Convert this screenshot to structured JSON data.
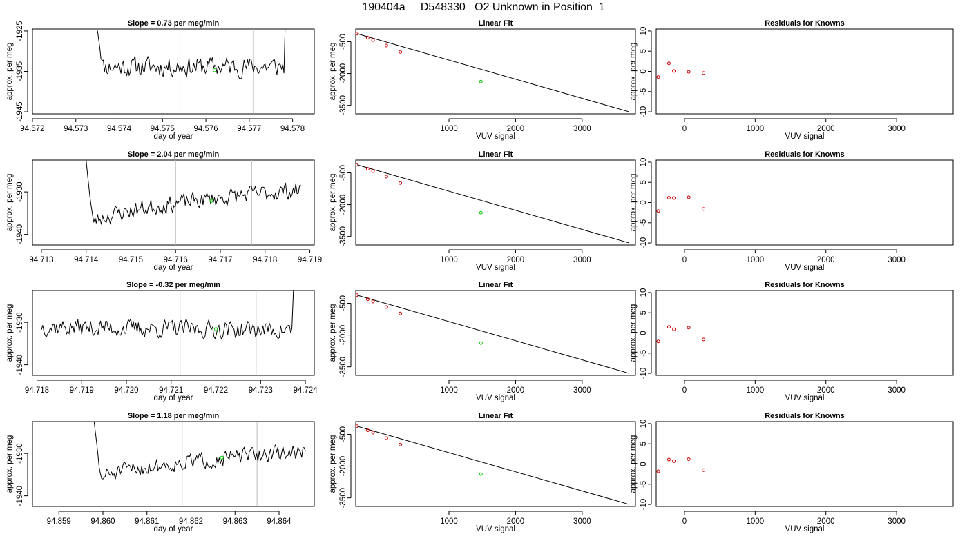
{
  "page": {
    "title": "190404a     D548330   O2 Unknown in Position  1"
  },
  "chart_data": [
    {
      "type": "line",
      "panel": "timeseries",
      "title_prefix": "Slope = ",
      "slope": "0.73",
      "title_suffix": " per meg/min",
      "xlabel": "day of year",
      "ylabel": "approx. per meg",
      "xlim": [
        94.572,
        94.5785
      ],
      "ylim": [
        -1945.5,
        -1924.5
      ],
      "xticks": [
        "94.572",
        "94.573",
        "94.574",
        "94.575",
        "94.576",
        "94.577",
        "94.578"
      ],
      "yticks": [
        "-1925",
        "-1935",
        "-1945"
      ],
      "vlines": [
        94.5754,
        94.5771
      ],
      "series": [
        {
          "x_start": 94.5735,
          "x_end": 94.5778,
          "n": 160,
          "base": -1933.8,
          "trend": 0.0,
          "noise": 2.2,
          "start_spike": -1925.0,
          "end_spike": -1924.5,
          "seed": 11
        }
      ],
      "green_point": [
        94.5762,
        -1934.7
      ],
      "line_color": "#000000",
      "point_color": "#00cc00",
      "ref_line_color": "#bbbbbb"
    },
    {
      "type": "scatter",
      "panel": "linear_fit",
      "title": "Linear Fit",
      "xlabel": "VUV signal",
      "ylabel": "approx. per meg",
      "xlim": [
        -400,
        3800
      ],
      "ylim": [
        -3900,
        100
      ],
      "xticks": [
        "1000",
        "2000",
        "3000"
      ],
      "yticks": [
        "-500",
        "-2000",
        "-3500"
      ],
      "known_points": [
        [
          -380,
          -120
        ],
        [
          -220,
          -310
        ],
        [
          -140,
          -420
        ],
        [
          60,
          -680
        ],
        [
          270,
          -980
        ]
      ],
      "unknown_point": [
        1480,
        -2380
      ],
      "fit_line": [
        [
          -380,
          -120
        ],
        [
          3700,
          -3800
        ]
      ],
      "point_color": "#cc0000",
      "unknown_color": "#00cc00"
    },
    {
      "type": "scatter",
      "panel": "residuals",
      "title": "Residuals for Knowns",
      "xlabel": "VUV signal",
      "ylabel": "approx. per meg",
      "xlim": [
        -400,
        3800
      ],
      "ylim": [
        -10.5,
        10.5
      ],
      "xticks": [
        "0",
        "1000",
        "2000",
        "3000"
      ],
      "yticks": [
        "10",
        "5",
        "0",
        "-5",
        "-10"
      ],
      "points": [
        [
          -370,
          -1.4
        ],
        [
          -220,
          2.0
        ],
        [
          -150,
          0.1
        ],
        [
          60,
          -0.1
        ],
        [
          270,
          -0.4
        ]
      ],
      "point_color": "#cc0000"
    },
    {
      "type": "line",
      "panel": "timeseries",
      "title_prefix": "Slope = ",
      "slope": "2.04",
      "title_suffix": " per meg/min",
      "xlabel": "day of year",
      "ylabel": "approx. per meg",
      "xlim": [
        94.7128,
        94.7191
      ],
      "ylim": [
        -1942.5,
        -1922.5
      ],
      "xticks": [
        "94.713",
        "94.714",
        "94.715",
        "94.716",
        "94.717",
        "94.718",
        "94.719"
      ],
      "yticks": [
        "-1930",
        "-1940"
      ],
      "vlines": [
        94.716,
        94.7177
      ],
      "series": [
        {
          "x_start": 94.714,
          "x_end": 94.7188,
          "n": 170,
          "base": -1938.5,
          "trend": 9.0,
          "noise": 1.8,
          "start_spike": -1922.5,
          "end_spike": null,
          "seed": 23
        }
      ],
      "green_point": [
        94.7168,
        -1932.1
      ],
      "line_color": "#000000",
      "point_color": "#00cc00",
      "ref_line_color": "#bbbbbb"
    },
    {
      "type": "scatter",
      "panel": "linear_fit",
      "title": "Linear Fit",
      "xlabel": "VUV signal",
      "ylabel": "approx. per meg",
      "xlim": [
        -400,
        3800
      ],
      "ylim": [
        -3900,
        100
      ],
      "xticks": [
        "1000",
        "2000",
        "3000"
      ],
      "yticks": [
        "-500",
        "-2000",
        "-3500"
      ],
      "known_points": [
        [
          -380,
          -120
        ],
        [
          -220,
          -310
        ],
        [
          -140,
          -420
        ],
        [
          60,
          -680
        ],
        [
          270,
          -980
        ]
      ],
      "unknown_point": [
        1480,
        -2380
      ],
      "fit_line": [
        [
          -380,
          -120
        ],
        [
          3700,
          -3800
        ]
      ],
      "point_color": "#cc0000",
      "unknown_color": "#00cc00"
    },
    {
      "type": "scatter",
      "panel": "residuals",
      "title": "Residuals for Knowns",
      "xlabel": "VUV signal",
      "ylabel": "approx. per meg",
      "xlim": [
        -400,
        3800
      ],
      "ylim": [
        -10.5,
        10.5
      ],
      "xticks": [
        "0",
        "1000",
        "2000",
        "3000"
      ],
      "yticks": [
        "10",
        "5",
        "0",
        "-5",
        "-10"
      ],
      "points": [
        [
          -370,
          -2.1
        ],
        [
          -220,
          1.2
        ],
        [
          -150,
          1.1
        ],
        [
          60,
          1.3
        ],
        [
          270,
          -1.6
        ]
      ],
      "point_color": "#cc0000"
    },
    {
      "type": "line",
      "panel": "timeseries",
      "title_prefix": "Slope = ",
      "slope": "-0.32",
      "title_suffix": " per meg/min",
      "xlabel": "day of year",
      "ylabel": "approx. per meg",
      "xlim": [
        94.7179,
        94.7242
      ],
      "ylim": [
        -1942.5,
        -1922.5
      ],
      "xticks": [
        "94.718",
        "94.719",
        "94.720",
        "94.721",
        "94.722",
        "94.723",
        "94.724"
      ],
      "yticks": [
        "-1930",
        "-1940"
      ],
      "vlines": [
        94.7212,
        94.7229
      ],
      "series": [
        {
          "x_start": 94.7181,
          "x_end": 94.7237,
          "n": 200,
          "base": -1930.8,
          "trend": -1.0,
          "noise": 1.9,
          "start_spike": null,
          "end_spike": -1922.5,
          "seed": 37
        }
      ],
      "green_point": [
        94.722,
        -1931.6
      ],
      "line_color": "#000000",
      "point_color": "#00cc00",
      "ref_line_color": "#bbbbbb"
    },
    {
      "type": "scatter",
      "panel": "linear_fit",
      "title": "Linear Fit",
      "xlabel": "VUV signal",
      "ylabel": "approx. per meg",
      "xlim": [
        -400,
        3800
      ],
      "ylim": [
        -3900,
        100
      ],
      "xticks": [
        "1000",
        "2000",
        "3000"
      ],
      "yticks": [
        "-500",
        "-2000",
        "-3500"
      ],
      "known_points": [
        [
          -380,
          -120
        ],
        [
          -220,
          -310
        ],
        [
          -140,
          -420
        ],
        [
          60,
          -680
        ],
        [
          270,
          -980
        ]
      ],
      "unknown_point": [
        1480,
        -2380
      ],
      "fit_line": [
        [
          -380,
          -120
        ],
        [
          3700,
          -3800
        ]
      ],
      "point_color": "#cc0000",
      "unknown_color": "#00cc00"
    },
    {
      "type": "scatter",
      "panel": "residuals",
      "title": "Residuals for Knowns",
      "xlabel": "VUV signal",
      "ylabel": "approx. per meg",
      "xlim": [
        -400,
        3800
      ],
      "ylim": [
        -10.5,
        10.5
      ],
      "xticks": [
        "0",
        "1000",
        "2000",
        "3000"
      ],
      "yticks": [
        "10",
        "5",
        "0",
        "-5",
        "-10"
      ],
      "points": [
        [
          -370,
          -2.1
        ],
        [
          -220,
          1.5
        ],
        [
          -150,
          0.9
        ],
        [
          60,
          1.3
        ],
        [
          270,
          -1.6
        ]
      ],
      "point_color": "#cc0000"
    },
    {
      "type": "line",
      "panel": "timeseries",
      "title_prefix": "Slope = ",
      "slope": "1.18",
      "title_suffix": " per meg/min",
      "xlabel": "day of year",
      "ylabel": "approx. per meg",
      "xlim": [
        94.8584,
        94.8648
      ],
      "ylim": [
        -1942.5,
        -1922.5
      ],
      "xticks": [
        "94.859",
        "94.860",
        "94.861",
        "94.862",
        "94.863",
        "94.864"
      ],
      "yticks": [
        "-1930",
        "-1940"
      ],
      "vlines": [
        94.8618,
        94.8635
      ],
      "series": [
        {
          "x_start": 94.8598,
          "x_end": 94.8646,
          "n": 170,
          "base": -1937.0,
          "trend": 7.5,
          "noise": 1.7,
          "start_spike": -1922.5,
          "end_spike": null,
          "seed": 51
        }
      ],
      "green_point": [
        94.8627,
        -1931.0
      ],
      "line_color": "#000000",
      "point_color": "#00cc00",
      "ref_line_color": "#bbbbbb"
    },
    {
      "type": "scatter",
      "panel": "linear_fit",
      "title": "Linear Fit",
      "xlabel": "VUV signal",
      "ylabel": "approx. per meg",
      "xlim": [
        -400,
        3800
      ],
      "ylim": [
        -3900,
        100
      ],
      "xticks": [
        "1000",
        "2000",
        "3000"
      ],
      "yticks": [
        "-500",
        "-2000",
        "-3500"
      ],
      "known_points": [
        [
          -380,
          -120
        ],
        [
          -220,
          -310
        ],
        [
          -140,
          -420
        ],
        [
          60,
          -680
        ],
        [
          270,
          -980
        ]
      ],
      "unknown_point": [
        1480,
        -2380
      ],
      "fit_line": [
        [
          -380,
          -120
        ],
        [
          3700,
          -3800
        ]
      ],
      "point_color": "#cc0000",
      "unknown_color": "#00cc00"
    },
    {
      "type": "scatter",
      "panel": "residuals",
      "title": "Residuals for Knowns",
      "xlabel": "VUV signal",
      "ylabel": "approx. per meg",
      "xlim": [
        -400,
        3800
      ],
      "ylim": [
        -10.5,
        10.5
      ],
      "xticks": [
        "0",
        "1000",
        "2000",
        "3000"
      ],
      "yticks": [
        "10",
        "5",
        "0",
        "-5",
        "-10"
      ],
      "points": [
        [
          -370,
          -1.8
        ],
        [
          -220,
          1.1
        ],
        [
          -150,
          0.7
        ],
        [
          60,
          1.2
        ],
        [
          270,
          -1.5
        ]
      ],
      "point_color": "#cc0000"
    }
  ]
}
